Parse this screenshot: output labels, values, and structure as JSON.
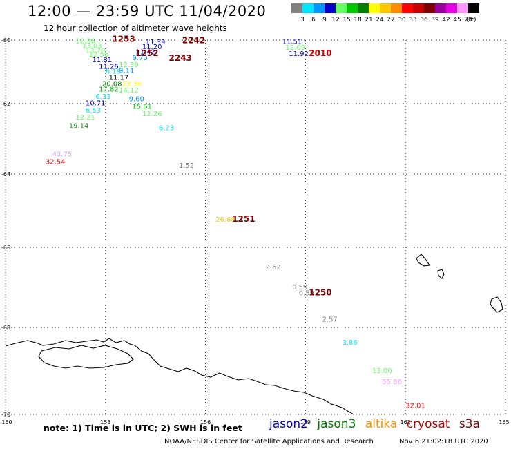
{
  "header": {
    "title": "12:00 — 23:59 UTC 11/04/2020",
    "subtitle": "12 hour collection of altimeter wave heights"
  },
  "legend": {
    "bins": [
      {
        "label": "3",
        "color": "#808080"
      },
      {
        "label": "6",
        "color": "#00e5ff"
      },
      {
        "label": "9",
        "color": "#0096ff"
      },
      {
        "label": "12",
        "color": "#0000c8"
      },
      {
        "label": "15",
        "color": "#66ff66"
      },
      {
        "label": "18",
        "color": "#00c800"
      },
      {
        "label": "21",
        "color": "#008000"
      },
      {
        "label": "24",
        "color": "#ffff00"
      },
      {
        "label": "27",
        "color": "#ffc800"
      },
      {
        "label": "30",
        "color": "#ff8c00"
      },
      {
        "label": "33",
        "color": "#ff0000"
      },
      {
        "label": "36",
        "color": "#c80000"
      },
      {
        "label": "39",
        "color": "#800000"
      },
      {
        "label": "42",
        "color": "#9c009c"
      },
      {
        "label": "45",
        "color": "#e600e6"
      },
      {
        "label": "70",
        "color": "#ff99ff"
      },
      {
        "label": "",
        "color": "#000000"
      }
    ],
    "unit": "(ft)"
  },
  "axes": {
    "lon_ticks": [
      "150",
      "153",
      "156",
      "159",
      "162",
      "165"
    ],
    "lat_ticks": [
      "-60",
      "-62",
      "-64",
      "-66",
      "-68",
      "-70"
    ]
  },
  "times": [
    {
      "text": "1253",
      "lon": 153.2,
      "lat": -60.05
    },
    {
      "text": "2242",
      "lon": 155.3,
      "lat": -60.1
    },
    {
      "text": "1252",
      "lon": 153.9,
      "lat": -60.5
    },
    {
      "text": "2243",
      "lon": 154.9,
      "lat": -60.65
    },
    {
      "text": "2010",
      "lon": 159.1,
      "lat": -60.5
    },
    {
      "text": "1251",
      "lon": 156.8,
      "lat": -65.3
    },
    {
      "text": "1250",
      "lon": 159.1,
      "lat": -67.2
    }
  ],
  "wave_heights": [
    {
      "value": "12.26",
      "lon": 152.1,
      "lat": -60.1,
      "color": "#66ff66"
    },
    {
      "value": "13.03",
      "lon": 152.3,
      "lat": -60.25,
      "color": "#66ff66"
    },
    {
      "value": "13.70",
      "lon": 152.4,
      "lat": -60.4,
      "color": "#66ff66"
    },
    {
      "value": "12.56",
      "lon": 152.5,
      "lat": -60.52,
      "color": "#66ff66"
    },
    {
      "value": "11.81",
      "lon": 152.6,
      "lat": -60.7,
      "color": "#0000c8"
    },
    {
      "value": "11.39",
      "lon": 154.2,
      "lat": -60.13,
      "color": "#0000c8"
    },
    {
      "value": "11.20",
      "lon": 154.1,
      "lat": -60.28,
      "color": "#0000c8"
    },
    {
      "value": "11.42",
      "lon": 153.9,
      "lat": -60.45,
      "color": "#0000c8"
    },
    {
      "value": "9.70",
      "lon": 153.8,
      "lat": -60.63,
      "color": "#0096ff"
    },
    {
      "value": "12.39",
      "lon": 153.4,
      "lat": -60.85,
      "color": "#66ff66"
    },
    {
      "value": "11.26",
      "lon": 152.8,
      "lat": -60.9,
      "color": "#0000c8"
    },
    {
      "value": "6.19",
      "lon": 153.0,
      "lat": -61.05,
      "color": "#00e5ff"
    },
    {
      "value": "9.11",
      "lon": 153.4,
      "lat": -61.03,
      "color": "#0096ff"
    },
    {
      "value": "11.17",
      "lon": 153.1,
      "lat": -61.25,
      "color": "#000000"
    },
    {
      "value": "20.08",
      "lon": 152.9,
      "lat": -61.45,
      "color": "#008000"
    },
    {
      "value": "23.36",
      "lon": 153.5,
      "lat": -61.45,
      "color": "#ffff00"
    },
    {
      "value": "17.82",
      "lon": 152.8,
      "lat": -61.62,
      "color": "#00c800"
    },
    {
      "value": "14.12",
      "lon": 153.4,
      "lat": -61.65,
      "color": "#66ff66"
    },
    {
      "value": "6.33",
      "lon": 152.7,
      "lat": -61.85,
      "color": "#00e5ff"
    },
    {
      "value": "9.60",
      "lon": 153.7,
      "lat": -61.92,
      "color": "#0096ff"
    },
    {
      "value": "10.71",
      "lon": 152.4,
      "lat": -62.05,
      "color": "#0000c8"
    },
    {
      "value": "15.61",
      "lon": 153.8,
      "lat": -62.15,
      "color": "#00c800"
    },
    {
      "value": "6.53",
      "lon": 152.4,
      "lat": -62.25,
      "color": "#00e5ff"
    },
    {
      "value": "12.26",
      "lon": 154.1,
      "lat": -62.35,
      "color": "#66ff66"
    },
    {
      "value": "12.21",
      "lon": 152.1,
      "lat": -62.45,
      "color": "#66ff66"
    },
    {
      "value": "19.14",
      "lon": 151.9,
      "lat": -62.7,
      "color": "#008000"
    },
    {
      "value": "6.23",
      "lon": 154.6,
      "lat": -62.75,
      "color": "#00e5ff"
    },
    {
      "value": "43.75",
      "lon": 151.4,
      "lat": -63.5,
      "color": "#c8a0ff"
    },
    {
      "value": "32.54",
      "lon": 151.2,
      "lat": -63.72,
      "color": "#ff0000"
    },
    {
      "value": "1.52",
      "lon": 155.2,
      "lat": -63.82,
      "color": "#808080"
    },
    {
      "value": "11.51",
      "lon": 158.3,
      "lat": -60.12,
      "color": "#0000c8"
    },
    {
      "value": "12.09",
      "lon": 158.4,
      "lat": -60.3,
      "color": "#66ff66"
    },
    {
      "value": "11.92",
      "lon": 158.5,
      "lat": -60.5,
      "color": "#0000c8"
    },
    {
      "value": "26.68",
      "lon": 156.3,
      "lat": -65.3,
      "color": "#ffc800"
    },
    {
      "value": "2.62",
      "lon": 157.8,
      "lat": -66.55,
      "color": "#808080"
    },
    {
      "value": "0.59",
      "lon": 158.6,
      "lat": -67.05,
      "color": "#808080"
    },
    {
      "value": "0.59",
      "lon": 158.8,
      "lat": -67.2,
      "color": "#808080"
    },
    {
      "value": "2.57",
      "lon": 159.5,
      "lat": -67.85,
      "color": "#808080"
    },
    {
      "value": "3.86",
      "lon": 160.1,
      "lat": -68.4,
      "color": "#00e5ff"
    },
    {
      "value": "13.00",
      "lon": 161.0,
      "lat": -69.05,
      "color": "#66ff66"
    },
    {
      "value": "55.86",
      "lon": 161.3,
      "lat": -69.3,
      "color": "#ff99ff"
    },
    {
      "value": "32.01",
      "lon": 162.0,
      "lat": -69.85,
      "color": "#ff0000"
    }
  ],
  "notes": {
    "note": "note:  1) Time is in UTC;  2) SWH is in feet",
    "credit": "NOAA/NESDIS Center for Satellite Applications and Research",
    "generated": "Nov  6 21:02:18 UTC 2020"
  },
  "satellites": [
    {
      "name": "jason2",
      "color": "#0000c8"
    },
    {
      "name": "jason3",
      "color": "#008000"
    },
    {
      "name": "altika",
      "color": "#ff8c00"
    },
    {
      "name": "cryosat",
      "color": "#c80000"
    },
    {
      "name": "s3a",
      "color": "#800000"
    }
  ]
}
